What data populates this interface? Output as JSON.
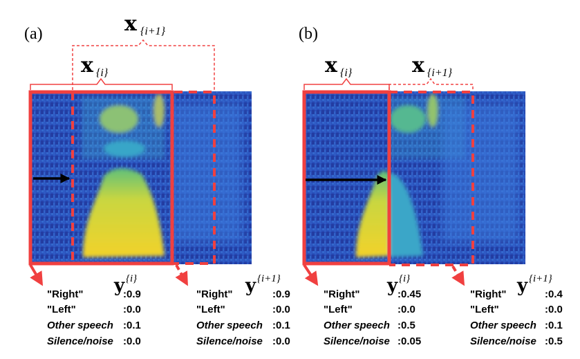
{
  "panel_a": {
    "label": "(a)",
    "window_current": {
      "symbol": "x",
      "subscript": "{i}"
    },
    "window_next": {
      "symbol": "x",
      "subscript": "{i+1}"
    },
    "output_current": {
      "symbol": "y",
      "subscript": "{i}",
      "classes": [
        {
          "label": "\"Right\"",
          "value": ":0.9"
        },
        {
          "label": "\"Left\"",
          "value": ":0.0"
        },
        {
          "label": "Other speech",
          "value": ":0.1"
        },
        {
          "label": "Silence/noise",
          "value": ":0.0"
        }
      ]
    },
    "output_next": {
      "symbol": "y",
      "subscript": "{i+1}",
      "classes": [
        {
          "label": "\"Right\"",
          "value": ":0.9"
        },
        {
          "label": "\"Left\"",
          "value": ":0.0"
        },
        {
          "label": "Other speech",
          "value": ":0.1"
        },
        {
          "label": "Silence/noise",
          "value": ":0.0"
        }
      ]
    }
  },
  "panel_b": {
    "label": "(b)",
    "window_current": {
      "symbol": "x",
      "subscript": "{i}"
    },
    "window_next": {
      "symbol": "x",
      "subscript": "{i+1}"
    },
    "output_current": {
      "symbol": "y",
      "subscript": "{i}",
      "classes": [
        {
          "label": "\"Right\"",
          "value": ":0.45"
        },
        {
          "label": "\"Left\"",
          "value": ":0.0"
        },
        {
          "label": "Other speech",
          "value": ":0.5"
        },
        {
          "label": "Silence/noise",
          "value": ":0.05"
        }
      ]
    },
    "output_next": {
      "symbol": "y",
      "subscript": "{i+1}",
      "classes": [
        {
          "label": "\"Right\"",
          "value": ":0.4"
        },
        {
          "label": "\"Left\"",
          "value": ":0.0"
        },
        {
          "label": "Other speech",
          "value": ":0.1"
        },
        {
          "label": "Silence/noise",
          "value": ":0.5"
        }
      ]
    }
  },
  "colors": {
    "window_frame": "#f04040",
    "arrow": "#000000",
    "spectrogram_dark": "#23389c",
    "spectrogram_mid": "#2f6fd9",
    "energy_low": "#3aa6c8",
    "energy_high": "#f0d030"
  }
}
